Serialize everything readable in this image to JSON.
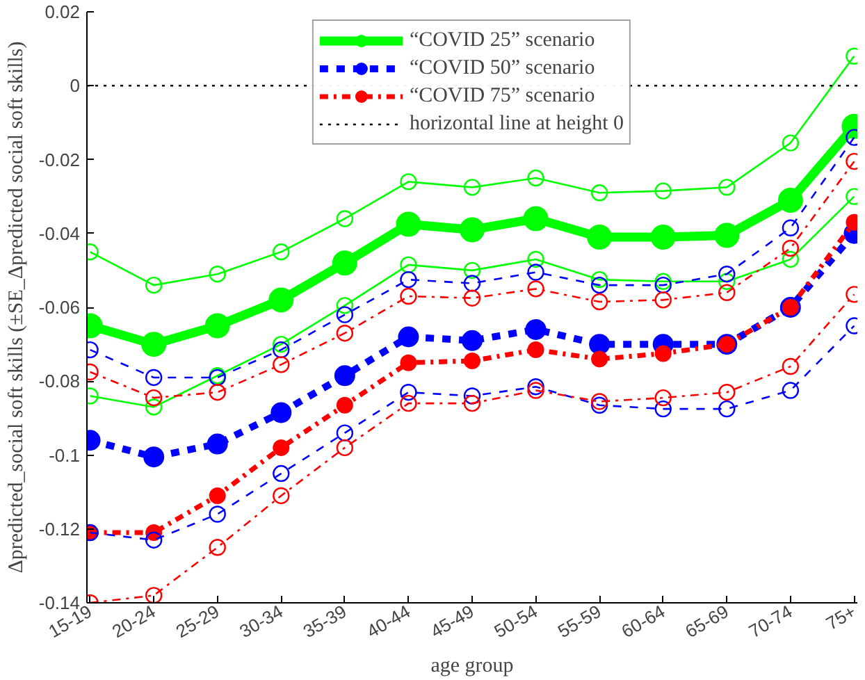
{
  "chart_data": {
    "type": "line",
    "xlabel": "age group",
    "ylabel": "Δpredicted_social soft skills (±SE_Δpredicted social soft skills)",
    "categories": [
      "15-19",
      "20-24",
      "25-29",
      "30-34",
      "35-39",
      "40-44",
      "45-49",
      "50-54",
      "55-59",
      "60-64",
      "65-69",
      "70-74",
      "75+"
    ],
    "series": [
      {
        "name": "“COVID 25” scenario",
        "color": "#00ff00",
        "line_style": "solid",
        "values": [
          -0.065,
          -0.07,
          -0.065,
          -0.058,
          -0.048,
          -0.0375,
          -0.039,
          -0.036,
          -0.041,
          -0.041,
          -0.0405,
          -0.031,
          -0.011
        ]
      },
      {
        "name": "“COVID 50” scenario",
        "color": "#0000ff",
        "line_style": "dashed",
        "values": [
          -0.096,
          -0.1005,
          -0.097,
          -0.0885,
          -0.0785,
          -0.068,
          -0.069,
          -0.066,
          -0.07,
          -0.07,
          -0.07,
          -0.06,
          -0.04
        ]
      },
      {
        "name": "“COVID 75” scenario",
        "color": "#ff0000",
        "line_style": "dashdot",
        "values": [
          -0.121,
          -0.121,
          -0.111,
          -0.098,
          -0.0865,
          -0.075,
          -0.0745,
          -0.0715,
          -0.074,
          -0.0725,
          -0.07,
          -0.06,
          -0.037
        ]
      },
      {
        "color": "#00ff00",
        "line_style": "solid",
        "values": [
          -0.045,
          -0.054,
          -0.051,
          -0.045,
          -0.036,
          -0.026,
          -0.0275,
          -0.025,
          -0.029,
          -0.0285,
          -0.0275,
          -0.0155,
          0.008
        ]
      },
      {
        "color": "#00ff00",
        "line_style": "solid",
        "values": [
          -0.084,
          -0.087,
          -0.0785,
          -0.07,
          -0.0595,
          -0.0485,
          -0.05,
          -0.047,
          -0.0525,
          -0.053,
          -0.053,
          -0.047,
          -0.03
        ]
      },
      {
        "color": "#0000ff",
        "line_style": "dashed",
        "values": [
          -0.0715,
          -0.079,
          -0.079,
          -0.0715,
          -0.062,
          -0.0525,
          -0.0535,
          -0.0505,
          -0.054,
          -0.054,
          -0.051,
          -0.0385,
          -0.014
        ]
      },
      {
        "color": "#0000ff",
        "line_style": "dashed",
        "values": [
          -0.121,
          -0.123,
          -0.116,
          -0.105,
          -0.094,
          -0.083,
          -0.084,
          -0.0815,
          -0.0865,
          -0.0875,
          -0.0875,
          -0.0825,
          -0.065
        ]
      },
      {
        "color": "#ff0000",
        "line_style": "dashdot",
        "values": [
          -0.0775,
          -0.0845,
          -0.083,
          -0.0755,
          -0.067,
          -0.057,
          -0.0575,
          -0.055,
          -0.0585,
          -0.058,
          -0.056,
          -0.044,
          -0.0205
        ]
      },
      {
        "color": "#ff0000",
        "line_style": "dashdot",
        "values": [
          -0.14,
          -0.138,
          -0.125,
          -0.111,
          -0.098,
          -0.086,
          -0.086,
          -0.0825,
          -0.0855,
          -0.0845,
          -0.083,
          -0.076,
          -0.0565
        ]
      }
    ],
    "ref_lines": [
      {
        "axis": "y",
        "value": 0,
        "label": "horizontal line at height 0",
        "color": "#000000",
        "line_style": "dotted"
      }
    ],
    "ylim": [
      -0.14,
      0.02
    ],
    "yticks": [
      {
        "value": -0.14,
        "label": "-0.14"
      },
      {
        "value": -0.12,
        "label": "-0.12"
      },
      {
        "value": -0.1,
        "label": "-0.1"
      },
      {
        "value": -0.08,
        "label": "-0.08"
      },
      {
        "value": -0.06,
        "label": "-0.06"
      },
      {
        "value": -0.04,
        "label": "-0.04"
      },
      {
        "value": -0.02,
        "label": "-0.02"
      },
      {
        "value": 0,
        "label": "0"
      },
      {
        "value": 0.02,
        "label": "0.02"
      }
    ],
    "marker": "circle",
    "grid": false,
    "legend": "top"
  }
}
